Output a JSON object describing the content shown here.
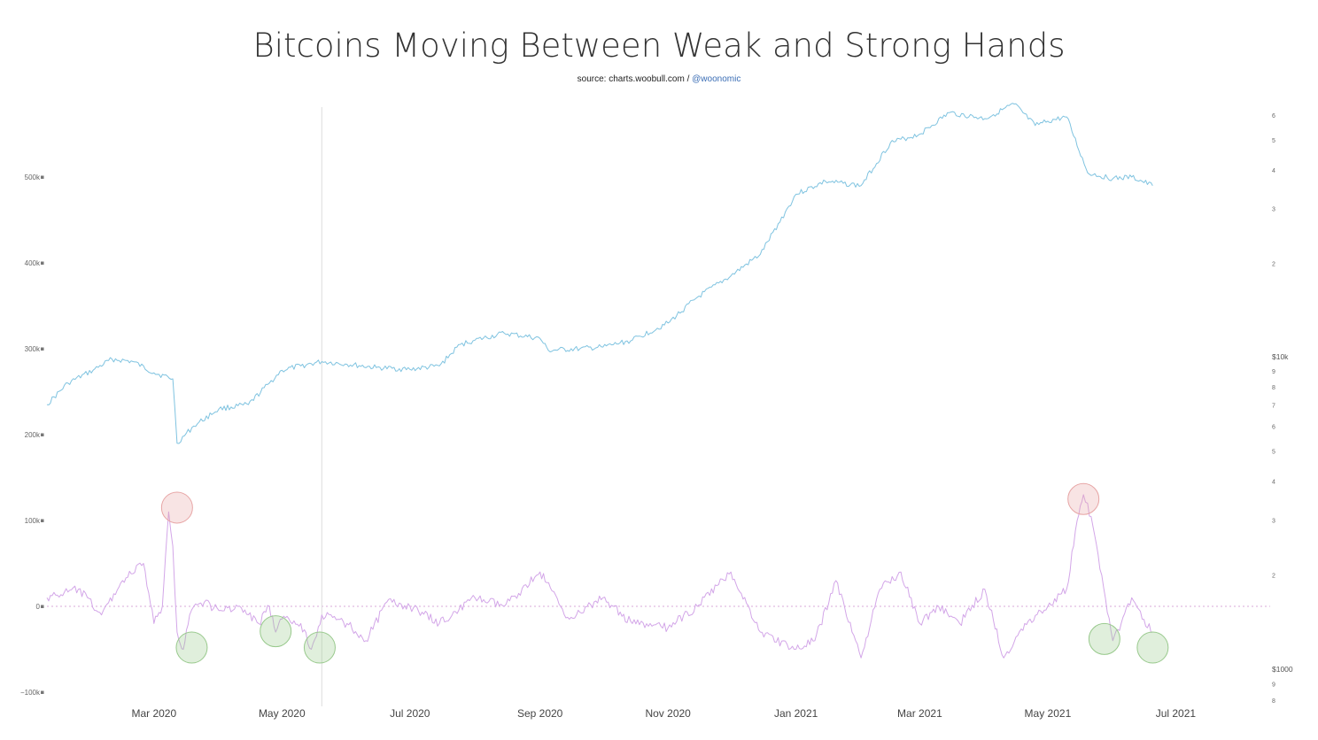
{
  "title": "Bitcoins Moving Between Weak and Strong Hands",
  "source": {
    "prefix": "source: charts.woobull.com / ",
    "handle": "@woonomic"
  },
  "colors": {
    "flow_series": "#7fc3e0",
    "net_change_series": "#d3a6e8",
    "zero_line": "#d8a8d8",
    "marker_line": "#dddddd",
    "highlight_sell": "#e7a5a5",
    "highlight_buy": "#98c98c"
  },
  "chart_data": {
    "type": "line",
    "left_axis": {
      "ticks": [
        "500k",
        "400k",
        "300k",
        "200k",
        "100k",
        "0",
        "−100k"
      ],
      "values": [
        500000,
        400000,
        300000,
        200000,
        100000,
        0,
        -100000
      ],
      "ylim": [
        -100000,
        590000
      ]
    },
    "right_axis": {
      "scale": "log",
      "ticks": [
        "6",
        "5",
        "4",
        "3",
        "2",
        "$10k",
        "9",
        "8",
        "7",
        "6",
        "5",
        "4",
        "3",
        "2",
        "$1000",
        "9",
        "8"
      ],
      "values": [
        60000,
        50000,
        40000,
        30000,
        20000,
        10000,
        9000,
        8000,
        7000,
        6000,
        5000,
        4000,
        3000,
        2000,
        1000,
        900,
        800
      ]
    },
    "x_axis": {
      "labels": [
        "Mar 2020",
        "May 2020",
        "Jul 2020",
        "Sep 2020",
        "Nov 2020",
        "Jan 2021",
        "Mar 2021",
        "May 2021",
        "Jul 2021"
      ],
      "dates": [
        "2020-03-01",
        "2020-05-01",
        "2020-07-01",
        "2020-09-01",
        "2020-11-01",
        "2021-01-01",
        "2021-03-01",
        "2021-05-01",
        "2021-07-01"
      ],
      "range": [
        "2020-01-10",
        "2021-08-15"
      ]
    },
    "vertical_marker": "2020-05-20",
    "series": [
      {
        "axis": "left",
        "x": [
          "2020-01-10",
          "2020-01-20",
          "2020-02-01",
          "2020-02-10",
          "2020-02-20",
          "2020-03-01",
          "2020-03-10",
          "2020-03-12",
          "2020-03-20",
          "2020-04-01",
          "2020-04-15",
          "2020-04-25",
          "2020-05-01",
          "2020-05-10",
          "2020-05-20",
          "2020-06-01",
          "2020-06-15",
          "2020-07-01",
          "2020-07-15",
          "2020-07-25",
          "2020-08-01",
          "2020-08-15",
          "2020-09-01",
          "2020-09-05",
          "2020-09-20",
          "2020-10-01",
          "2020-10-15",
          "2020-11-01",
          "2020-11-15",
          "2020-12-01",
          "2020-12-15",
          "2021-01-01",
          "2021-01-15",
          "2021-02-01",
          "2021-02-15",
          "2021-03-01",
          "2021-03-15",
          "2021-04-01",
          "2021-04-15",
          "2021-04-25",
          "2021-05-01",
          "2021-05-10",
          "2021-05-20",
          "2021-06-01",
          "2021-06-10",
          "2021-06-20"
        ],
        "y": [
          235000,
          260000,
          275000,
          288000,
          285000,
          272000,
          265000,
          190000,
          210000,
          230000,
          235000,
          260000,
          275000,
          280000,
          285000,
          282000,
          278000,
          276000,
          280000,
          305000,
          310000,
          318000,
          312000,
          298000,
          300000,
          302000,
          310000,
          330000,
          360000,
          385000,
          410000,
          480000,
          495000,
          490000,
          540000,
          550000,
          575000,
          568000,
          585000,
          560000,
          565000,
          570000,
          505000,
          498000,
          500000,
          490000
        ]
      },
      {
        "axis": "left",
        "x": [
          "2020-01-10",
          "2020-01-25",
          "2020-02-05",
          "2020-02-15",
          "2020-02-25",
          "2020-03-01",
          "2020-03-05",
          "2020-03-08",
          "2020-03-10",
          "2020-03-12",
          "2020-03-15",
          "2020-03-18",
          "2020-03-20",
          "2020-03-25",
          "2020-04-01",
          "2020-04-10",
          "2020-04-20",
          "2020-04-25",
          "2020-04-28",
          "2020-05-01",
          "2020-05-10",
          "2020-05-15",
          "2020-05-20",
          "2020-06-01",
          "2020-06-10",
          "2020-06-20",
          "2020-07-01",
          "2020-07-15",
          "2020-08-01",
          "2020-08-15",
          "2020-09-01",
          "2020-09-15",
          "2020-10-01",
          "2020-10-15",
          "2020-11-01",
          "2020-11-15",
          "2020-12-01",
          "2020-12-15",
          "2021-01-01",
          "2021-01-10",
          "2021-01-20",
          "2021-02-01",
          "2021-02-10",
          "2021-02-20",
          "2021-03-01",
          "2021-03-10",
          "2021-03-20",
          "2021-04-01",
          "2021-04-10",
          "2021-04-20",
          "2021-05-01",
          "2021-05-10",
          "2021-05-15",
          "2021-05-18",
          "2021-05-20",
          "2021-05-25",
          "2021-06-01",
          "2021-06-05",
          "2021-06-10",
          "2021-06-15",
          "2021-06-20"
        ],
        "y": [
          10000,
          20000,
          -10000,
          30000,
          50000,
          -20000,
          0,
          110000,
          70000,
          -30000,
          -50000,
          -10000,
          0,
          5000,
          -5000,
          0,
          -20000,
          0,
          -30000,
          -15000,
          -20000,
          -50000,
          -10000,
          -20000,
          -40000,
          5000,
          0,
          -20000,
          10000,
          0,
          40000,
          -15000,
          10000,
          -20000,
          -25000,
          0,
          40000,
          -30000,
          -50000,
          -40000,
          30000,
          -60000,
          20000,
          40000,
          -20000,
          0,
          -20000,
          20000,
          -60000,
          -20000,
          0,
          20000,
          100000,
          130000,
          120000,
          60000,
          -40000,
          -20000,
          10000,
          -15000,
          -30000
        ]
      }
    ],
    "highlights": [
      {
        "kind": "sell",
        "x": "2020-03-12",
        "y": 115000
      },
      {
        "kind": "buy",
        "x": "2020-03-19",
        "y": -48000
      },
      {
        "kind": "buy",
        "x": "2020-04-28",
        "y": -29000
      },
      {
        "kind": "buy",
        "x": "2020-05-19",
        "y": -48000
      },
      {
        "kind": "sell",
        "x": "2021-05-18",
        "y": 125000
      },
      {
        "kind": "buy",
        "x": "2021-05-28",
        "y": -38000
      },
      {
        "kind": "buy",
        "x": "2021-06-20",
        "y": -48000
      }
    ]
  }
}
